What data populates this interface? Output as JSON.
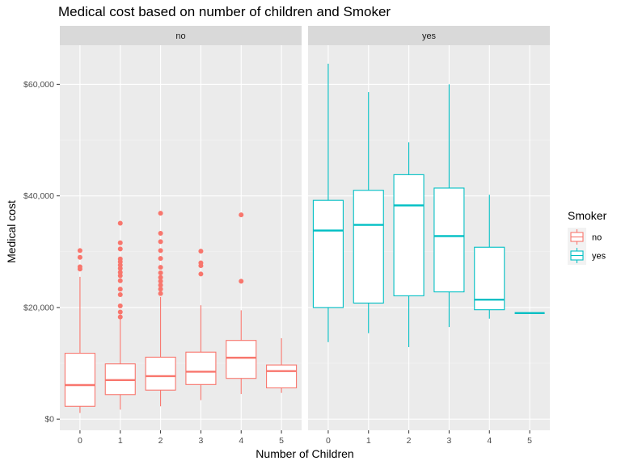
{
  "chart_data": {
    "type": "boxplot",
    "title": "Medical cost based on number of children and Smoker",
    "xlabel": "Number of Children",
    "ylabel": "Medical cost",
    "categories": [
      "0",
      "1",
      "2",
      "3",
      "4",
      "5"
    ],
    "ylim": [
      -2000,
      67000
    ],
    "yticks": [
      0,
      20000,
      40000,
      60000
    ],
    "ytick_labels": [
      "$0",
      "$20,000",
      "$40,000",
      "$60,000"
    ],
    "grid": true,
    "legend": {
      "title": "Smoker",
      "position": "right",
      "entries": [
        {
          "label": "no",
          "color": "#F8766D"
        },
        {
          "label": "yes",
          "color": "#00BFC4"
        }
      ]
    },
    "panels": [
      {
        "strip_label": "no",
        "color": "#F8766D",
        "boxes": [
          {
            "x": "0",
            "whisker_low": 1100,
            "q1": 2300,
            "median": 6100,
            "q3": 11800,
            "whisker_high": 25500,
            "outliers": [
              26900,
              27300,
              29000,
              30200
            ]
          },
          {
            "x": "1",
            "whisker_low": 1700,
            "q1": 4400,
            "median": 7000,
            "q3": 9900,
            "whisker_high": 17900,
            "outliers": [
              18300,
              19200,
              20300,
              22300,
              23300,
              24800,
              25700,
              26300,
              27000,
              27600,
              28200,
              28700,
              30500,
              31600,
              35100
            ]
          },
          {
            "x": "2",
            "whisker_low": 2300,
            "q1": 5200,
            "median": 7700,
            "q3": 11100,
            "whisker_high": 21900,
            "outliers": [
              22500,
              23300,
              24000,
              24700,
              25400,
              26200,
              27200,
              28800,
              30200,
              31800,
              33300,
              36900
            ]
          },
          {
            "x": "3",
            "whisker_low": 3400,
            "q1": 6200,
            "median": 8500,
            "q3": 12000,
            "whisker_high": 20400,
            "outliers": [
              26000,
              27500,
              28000,
              30100
            ]
          },
          {
            "x": "4",
            "whisker_low": 4500,
            "q1": 7300,
            "median": 11000,
            "q3": 14100,
            "whisker_high": 19500,
            "outliers": [
              24700,
              36600
            ]
          },
          {
            "x": "5",
            "whisker_low": 4700,
            "q1": 5600,
            "median": 8600,
            "q3": 9700,
            "whisker_high": 14500,
            "outliers": []
          }
        ]
      },
      {
        "strip_label": "yes",
        "color": "#00BFC4",
        "boxes": [
          {
            "x": "0",
            "whisker_low": 13800,
            "q1": 20000,
            "median": 33800,
            "q3": 39200,
            "whisker_high": 63700,
            "outliers": []
          },
          {
            "x": "1",
            "whisker_low": 15400,
            "q1": 20800,
            "median": 34800,
            "q3": 41000,
            "whisker_high": 58600,
            "outliers": []
          },
          {
            "x": "2",
            "whisker_low": 12900,
            "q1": 22100,
            "median": 38300,
            "q3": 43800,
            "whisker_high": 49600,
            "outliers": []
          },
          {
            "x": "3",
            "whisker_low": 16500,
            "q1": 22800,
            "median": 32800,
            "q3": 41400,
            "whisker_high": 60000,
            "outliers": []
          },
          {
            "x": "4",
            "whisker_low": 18000,
            "q1": 19600,
            "median": 21400,
            "q3": 30800,
            "whisker_high": 40200,
            "outliers": []
          },
          {
            "x": "5",
            "whisker_low": 19000,
            "q1": 19000,
            "median": 19000,
            "q3": 19000,
            "whisker_high": 19000,
            "outliers": []
          }
        ]
      }
    ]
  }
}
